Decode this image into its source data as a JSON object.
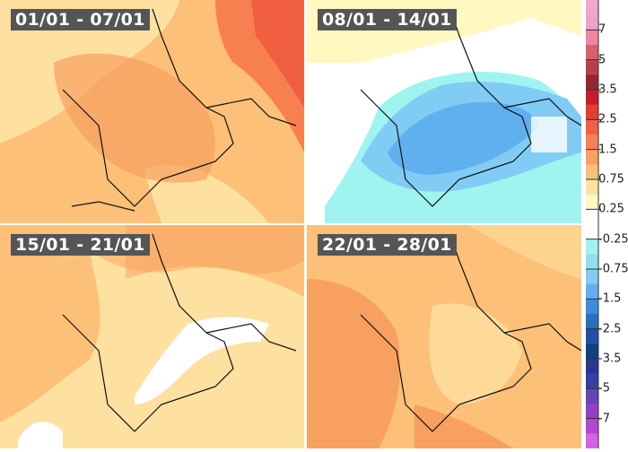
{
  "panels": [
    {
      "title": "01/01 - 07/01"
    },
    {
      "title": "08/01 - 14/01"
    },
    {
      "title": "15/01 - 21/01"
    },
    {
      "title": "22/01 - 28/01"
    }
  ],
  "legend": {
    "labels": [
      "7",
      "5",
      "3.5",
      "2.5",
      "1.5",
      "0.75",
      "0.25",
      "-0.25",
      "-0.75",
      "-1.5",
      "-2.5",
      "-3.5",
      "-5",
      "-7"
    ],
    "colors": [
      "#f4a6cc",
      "#f0a0d0",
      "#ee86a6",
      "#d8606e",
      "#b8404e",
      "#902830",
      "#c81e28",
      "#e04030",
      "#f06040",
      "#f88050",
      "#f8a060",
      "#fcc078",
      "#fee0a0",
      "#fff8c0",
      "#ffffff",
      "#ffffff",
      "#a0f4f0",
      "#90e0f0",
      "#80ccf4",
      "#60b0f0",
      "#3c8ce0",
      "#2c6cc0",
      "#2050a8",
      "#104080",
      "#283890",
      "#3c3ca8",
      "#6444b8",
      "#9040c8",
      "#b048d0",
      "#d860e8"
    ]
  }
}
